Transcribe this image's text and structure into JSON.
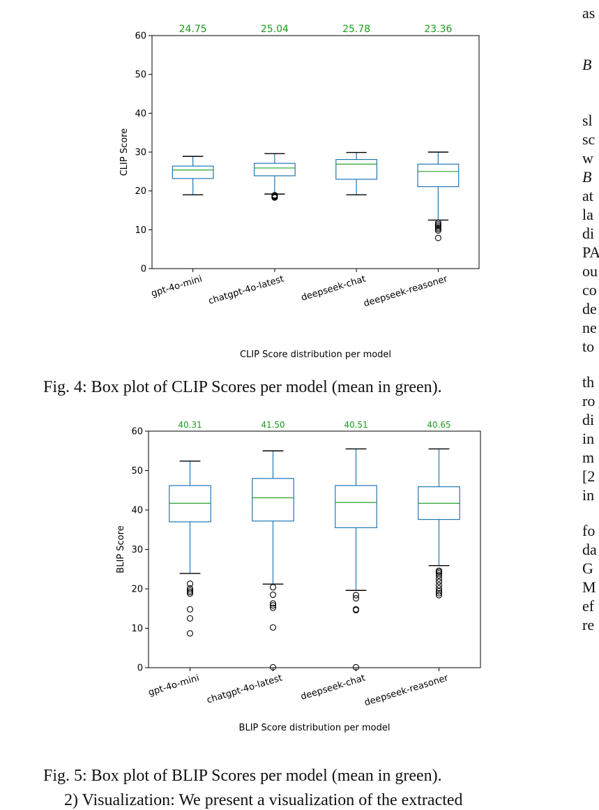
{
  "figures": [
    {
      "caption": "Fig. 4: Box plot of CLIP Scores per model (mean in green)."
    },
    {
      "caption": "Fig. 5: Box plot of BLIP Scores per model (mean in green)."
    }
  ],
  "body_text_bottom": "2) Visualization: We present a visualization of the extracted",
  "right_column_fragments": [
    "as",
    "B",
    "sl",
    "sc",
    "w",
    "B",
    "at",
    "la",
    "di",
    "PA",
    "ou",
    "co",
    "de",
    "ne",
    "to",
    "th",
    "ro",
    "di",
    "in",
    "m",
    "[2",
    "in",
    "fo",
    "da",
    "G",
    "M",
    "ef",
    "re"
  ],
  "chart_data": [
    {
      "type": "box",
      "title": "",
      "xlabel": "CLIP Score distribution per model",
      "ylabel": "CLIP Score",
      "ylim": [
        0,
        60
      ],
      "yticks": [
        0,
        10,
        20,
        30,
        40,
        50,
        60
      ],
      "categories": [
        "gpt-4o-mini",
        "chatgpt-4o-latest",
        "deepseek-chat",
        "deepseek-reasoner"
      ],
      "means": [
        "24.75",
        "25.04",
        "25.78",
        "23.36"
      ],
      "boxes": [
        {
          "whislo": 19,
          "q1": 23.2,
          "med": 25.4,
          "q3": 26.4,
          "whishi": 28.9,
          "fliers": []
        },
        {
          "whislo": 19.2,
          "q1": 23.9,
          "med": 25.9,
          "q3": 27.1,
          "whishi": 29.6,
          "fliers": [
            18.3,
            18.5,
            18.7,
            18.9
          ]
        },
        {
          "whislo": 19,
          "q1": 23.0,
          "med": 26.9,
          "q3": 28.1,
          "whishi": 29.9,
          "fliers": []
        },
        {
          "whislo": 12.5,
          "q1": 21.1,
          "med": 25.0,
          "q3": 26.9,
          "whishi": 30.0,
          "fliers": [
            7.9,
            9.8,
            10.2,
            10.6,
            11.0,
            11.4,
            11.8
          ]
        }
      ],
      "colors": {
        "box": "#1f77b4",
        "median": "#2ca02c",
        "mean_label": "#1a9a1a",
        "flier": "#000000"
      },
      "grid": false,
      "legend": "none"
    },
    {
      "type": "box",
      "title": "",
      "xlabel": "BLIP Score distribution per model",
      "ylabel": "BLIP Score",
      "ylim": [
        0,
        60
      ],
      "yticks": [
        0,
        10,
        20,
        30,
        40,
        50,
        60
      ],
      "categories": [
        "gpt-4o-mini",
        "chatgpt-4o-latest",
        "deepseek-chat",
        "deepseek-reasoner"
      ],
      "means": [
        "40.31",
        "41.50",
        "40.51",
        "40.65"
      ],
      "boxes": [
        {
          "whislo": 23.9,
          "q1": 37.0,
          "med": 41.7,
          "q3": 46.2,
          "whishi": 52.4,
          "fliers": [
            8.7,
            12.5,
            14.8,
            18.8,
            19.2,
            19.6,
            20.1,
            21.3
          ]
        },
        {
          "whislo": 21.2,
          "q1": 37.2,
          "med": 43.1,
          "q3": 48.0,
          "whishi": 55.0,
          "fliers": [
            0.1,
            10.2,
            15.2,
            15.8,
            16.3,
            18.5,
            20.4
          ]
        },
        {
          "whislo": 19.6,
          "q1": 35.5,
          "med": 41.9,
          "q3": 46.2,
          "whishi": 55.5,
          "fliers": [
            0.1,
            14.6,
            14.8,
            17.6,
            18.4
          ]
        },
        {
          "whislo": 25.9,
          "q1": 37.6,
          "med": 41.7,
          "q3": 45.9,
          "whishi": 55.5,
          "fliers": [
            18.4,
            18.9,
            19.4,
            20.1,
            20.9,
            21.8,
            22.6,
            23.4,
            23.9,
            24.3,
            24.6
          ]
        }
      ],
      "colors": {
        "box": "#1f77b4",
        "median": "#2ca02c",
        "mean_label": "#1a9a1a",
        "flier": "#000000"
      },
      "grid": false,
      "legend": "none"
    }
  ]
}
